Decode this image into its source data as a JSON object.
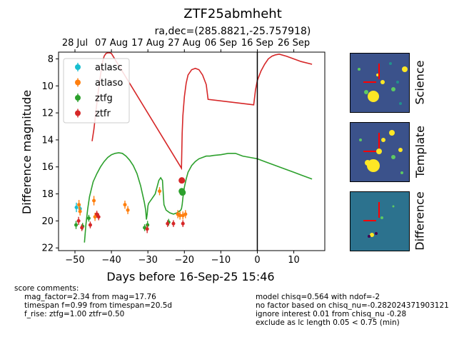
{
  "chart_data": {
    "type": "scatter",
    "title": "ZTF25abmheht",
    "subtitle": "ra,dec=(285.8821,-25.757918)",
    "xlabel": "Days before 16-Sep-25 15:46",
    "ylabel": "Difference magnitude",
    "xlim": [
      -54.5,
      18.5
    ],
    "ylim": [
      22.2,
      7.5
    ],
    "y_inverted": true,
    "grid": false,
    "legend": "top-left",
    "x_ticks": [
      -50,
      -40,
      -30,
      -20,
      -10,
      0,
      10
    ],
    "y_ticks": [
      8,
      10,
      12,
      14,
      16,
      18,
      20,
      22
    ],
    "top_axis_ticks": [
      {
        "x": -50,
        "label": "28 Jul"
      },
      {
        "x": -40,
        "label": "07 Aug"
      },
      {
        "x": -30,
        "label": "17 Aug"
      },
      {
        "x": -20,
        "label": "27 Aug"
      },
      {
        "x": -10,
        "label": "06 Sep"
      },
      {
        "x": 0,
        "label": "16 Sep"
      },
      {
        "x": 10,
        "label": "26 Sep"
      }
    ],
    "vline_x": 0,
    "series": [
      {
        "name": "atlasc",
        "color": "#17becf",
        "marker_size": 2.5,
        "points": [
          [
            -49.6,
            19.0,
            0.35
          ],
          [
            -48.6,
            19.1,
            0.3
          ]
        ]
      },
      {
        "name": "atlaso",
        "color": "#ff7f0e",
        "marker_size": 2.5,
        "points": [
          [
            -48.9,
            18.8,
            0.35
          ],
          [
            -48.6,
            19.3,
            0.3
          ],
          [
            -44.8,
            18.5,
            0.35
          ],
          [
            -44.5,
            19.7,
            0.3
          ],
          [
            -36.3,
            18.8,
            0.3
          ],
          [
            -35.5,
            19.2,
            0.3
          ],
          [
            -26.8,
            17.8,
            0.3
          ],
          [
            -21.8,
            19.5,
            0.3
          ],
          [
            -21.2,
            19.6,
            0.3
          ],
          [
            -20.4,
            19.6,
            0.3
          ],
          [
            -19.7,
            19.5,
            0.3
          ]
        ]
      },
      {
        "name": "ztfg",
        "color": "#2ca02c",
        "marker_size": 2.5,
        "points": [
          [
            -49.7,
            20.3,
            0.3
          ],
          [
            -47.9,
            20.4,
            0.25
          ],
          [
            -46.2,
            19.8,
            0.25
          ],
          [
            -30.9,
            20.5,
            0.25
          ],
          [
            -30.1,
            20.3,
            0.3
          ],
          [
            -24.3,
            20.1,
            0.25
          ],
          [
            -20.7,
            17.8,
            0.2
          ],
          [
            -20.5,
            17.9,
            0.2
          ]
        ]
      },
      {
        "name": "ztfr",
        "color": "#d62728",
        "marker_size": 2.5,
        "points": [
          [
            -49.0,
            20.0,
            0.3
          ],
          [
            -48.1,
            20.5,
            0.25
          ],
          [
            -45.8,
            20.3,
            0.25
          ],
          [
            -44.0,
            19.5,
            0.25
          ],
          [
            -43.5,
            19.7,
            0.25
          ],
          [
            -30.2,
            20.6,
            0.3
          ],
          [
            -24.6,
            20.2,
            0.25
          ],
          [
            -23.0,
            20.2,
            0.25
          ],
          [
            -20.7,
            17.0,
            0.15
          ],
          [
            -20.4,
            20.2,
            0.25
          ]
        ]
      }
    ],
    "models": [
      {
        "band": "ztfr",
        "color": "#d62728",
        "x": [
          -45.3,
          -44.8,
          -44.3,
          -43.6,
          -43.0,
          -42.5,
          -42.0,
          -41.5,
          -41.0,
          -40.5,
          -40.0,
          -20.8,
          -20.6,
          -20.4,
          -20.0,
          -19.5,
          -19.0,
          -18.0,
          -17.0,
          -16.0,
          -15.0,
          -14.0,
          -13.5,
          -1.0,
          -0.5,
          0,
          1,
          2,
          3,
          4,
          5,
          6,
          8,
          10,
          12,
          15
        ],
        "y": [
          14.1,
          13.2,
          12.0,
          10.4,
          9.2,
          8.3,
          7.8,
          7.6,
          7.55,
          7.55,
          7.6,
          16.1,
          13.5,
          12.2,
          10.8,
          9.8,
          9.2,
          8.8,
          8.7,
          8.8,
          9.2,
          9.9,
          11.0,
          11.4,
          10.3,
          9.6,
          8.9,
          8.4,
          8.0,
          7.8,
          7.7,
          7.65,
          7.8,
          8.0,
          8.2,
          8.4
        ]
      },
      {
        "band": "ztfg",
        "color": "#2ca02c",
        "x": [
          -47.4,
          -47.0,
          -46.5,
          -46.0,
          -45.0,
          -44.0,
          -43.0,
          -42.0,
          -41.0,
          -40.0,
          -39.0,
          -38.0,
          -37.0,
          -36.0,
          -35.0,
          -34.0,
          -33.0,
          -32.0,
          -31.0,
          -30.6,
          -30.4,
          -30.2,
          -30.0,
          -29.8,
          -29.0,
          -28.0,
          -27.5,
          -27.0,
          -26.5,
          -26.0,
          -25.8,
          -25.6,
          -25.0,
          -24.0,
          -23.0,
          -22.0,
          -21.0,
          -20.8,
          -20.6,
          -20.4,
          -20.0,
          -19.5,
          -19.0,
          -18.0,
          -17.0,
          -16.0,
          -15.0,
          -14.0,
          -13.0,
          -12.0,
          -10.0,
          -8.0,
          -6.0,
          -4.0,
          -2.0,
          0,
          2,
          4,
          6,
          8,
          10,
          12,
          15
        ],
        "y": [
          21.6,
          20.3,
          19.1,
          18.2,
          17.1,
          16.5,
          16.0,
          15.6,
          15.3,
          15.1,
          15.0,
          14.95,
          15.0,
          15.2,
          15.5,
          15.9,
          16.5,
          17.4,
          18.6,
          19.2,
          19.9,
          19.5,
          18.9,
          18.7,
          18.4,
          18.0,
          17.5,
          17.0,
          16.8,
          17.0,
          17.9,
          18.8,
          19.2,
          19.4,
          19.5,
          19.4,
          19.2,
          19.1,
          18.8,
          18.3,
          17.5,
          16.9,
          16.4,
          15.9,
          15.6,
          15.4,
          15.3,
          15.2,
          15.2,
          15.15,
          15.1,
          15.0,
          15.0,
          15.2,
          15.3,
          15.4,
          15.6,
          15.8,
          16.0,
          16.2,
          16.4,
          16.6,
          16.9
        ]
      }
    ]
  },
  "stamps": [
    {
      "label": "Science"
    },
    {
      "label": "Template"
    },
    {
      "label": "Difference"
    }
  ],
  "comments_left": {
    "heading": "score comments:",
    "lines": [
      "mag_factor=2.34 from mag=17.76",
      "timespan f=0.99 from timespan=20.5d",
      "f_rise: ztfg=1.00 ztfr=0.50"
    ]
  },
  "comments_right": {
    "lines": [
      "model chisq=0.564 with ndof=-2",
      "no factor based on chisq_nu=-0.282024371903121",
      "ignore interest 0.01 from chisq_nu -0.28",
      "exclude as lc length 0.05 < 0.75 (min)"
    ]
  },
  "colors": {
    "stamp_bg": "#3b528b",
    "stamp_bright": "#fde725",
    "crosshair": "#ff0000",
    "vline": "#000000"
  }
}
